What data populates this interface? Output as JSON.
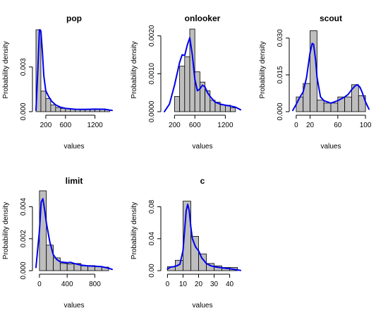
{
  "chart_data": [
    {
      "type": "bar",
      "title": "pop",
      "xlabel": "values",
      "ylabel": "Probability density",
      "xlim": [
        0,
        1550
      ],
      "ylim": [
        0,
        0.0056
      ],
      "xticks": [
        200,
        600,
        1200
      ],
      "yticks": [
        0.0,
        0.003
      ],
      "ytick_labels": [
        "0.000",
        "0.003"
      ],
      "bin_edges": [
        0,
        100,
        200,
        300,
        400,
        500,
        600,
        700,
        800,
        900,
        1000,
        1100,
        1200,
        1300,
        1400,
        1500
      ],
      "densities": [
        0.0055,
        0.00138,
        0.00088,
        0.00045,
        0.00028,
        0.00022,
        0.0002,
        0.00017,
        0.00015,
        0.00015,
        0.00015,
        0.00017,
        0.00018,
        0.00018,
        0.00012
      ],
      "density_curve": {
        "x": [
          0,
          40,
          70,
          100,
          130,
          160,
          200,
          260,
          320,
          400,
          500,
          600,
          800,
          1000,
          1200,
          1400,
          1550
        ],
        "y": [
          0.0001,
          0.003,
          0.0055,
          0.0054,
          0.004,
          0.0024,
          0.0014,
          0.001,
          0.0007,
          0.00045,
          0.0003,
          0.00022,
          0.00016,
          0.00015,
          0.00017,
          0.00016,
          8e-05
        ]
      }
    },
    {
      "type": "bar",
      "title": "onlooker",
      "xlabel": "values",
      "ylabel": "Probability density",
      "xlim": [
        0,
        1500
      ],
      "ylim": [
        0,
        0.0022
      ],
      "xticks": [
        200,
        600,
        1200
      ],
      "yticks": [
        0.0,
        0.001,
        0.002
      ],
      "ytick_labels": [
        "0.0000",
        "0.0010",
        "0.0020"
      ],
      "bin_edges": [
        200,
        300,
        400,
        500,
        600,
        700,
        800,
        900,
        1000,
        1100,
        1200,
        1300,
        1400
      ],
      "densities": [
        0.0004,
        0.0012,
        0.00145,
        0.00218,
        0.00105,
        0.00078,
        0.00055,
        0.0003,
        0.00025,
        0.00018,
        0.00017,
        0.0001
      ],
      "density_curve": {
        "x": [
          0,
          100,
          200,
          300,
          350,
          400,
          450,
          500,
          550,
          600,
          650,
          700,
          750,
          800,
          850,
          900,
          1000,
          1100,
          1200,
          1300,
          1400,
          1500
        ],
        "y": [
          0.0,
          0.0002,
          0.0007,
          0.0013,
          0.0015,
          0.00148,
          0.00175,
          0.00195,
          0.0015,
          0.00085,
          0.00055,
          0.0006,
          0.0007,
          0.00065,
          0.0005,
          0.0004,
          0.00025,
          0.0002,
          0.00017,
          0.00015,
          0.00012,
          5e-05
        ]
      }
    },
    {
      "type": "bar",
      "title": "scout",
      "xlabel": "values",
      "ylabel": "Probability density",
      "xlim": [
        -5,
        105
      ],
      "ylim": [
        0,
        0.034
      ],
      "xticks": [
        0,
        20,
        60,
        100
      ],
      "yticks": [
        0.0,
        0.015,
        0.03
      ],
      "ytick_labels": [
        "0.000",
        "0.015",
        "0.030"
      ],
      "bin_edges": [
        0,
        10,
        20,
        30,
        40,
        50,
        60,
        70,
        80,
        90,
        100
      ],
      "densities": [
        0.006,
        0.0115,
        0.033,
        0.0047,
        0.0035,
        0.0035,
        0.006,
        0.006,
        0.011,
        0.0065
      ],
      "density_curve": {
        "x": [
          -5,
          0,
          5,
          10,
          15,
          20,
          23,
          25,
          28,
          30,
          35,
          40,
          50,
          60,
          70,
          75,
          80,
          85,
          88,
          92,
          95,
          100,
          105
        ],
        "y": [
          0.0005,
          0.003,
          0.0058,
          0.008,
          0.014,
          0.024,
          0.0278,
          0.0275,
          0.021,
          0.014,
          0.006,
          0.0045,
          0.0035,
          0.0045,
          0.006,
          0.007,
          0.009,
          0.0105,
          0.011,
          0.01,
          0.008,
          0.004,
          0.001
        ]
      }
    },
    {
      "type": "bar",
      "title": "limit",
      "xlabel": "values",
      "ylabel": "Probability density",
      "xlim": [
        -50,
        1050
      ],
      "ylim": [
        0,
        0.005
      ],
      "xticks": [
        0,
        400,
        800
      ],
      "yticks": [
        0.0,
        0.002,
        0.004
      ],
      "ytick_labels": [
        "0.000",
        "0.002",
        "0.004"
      ],
      "bin_edges": [
        0,
        100,
        200,
        300,
        400,
        500,
        600,
        700,
        800,
        900,
        1000
      ],
      "densities": [
        0.005,
        0.0016,
        0.0008,
        0.00045,
        0.00042,
        0.00045,
        0.0003,
        0.00032,
        0.00025,
        0.00022
      ],
      "density_curve": {
        "x": [
          -50,
          0,
          25,
          50,
          75,
          100,
          150,
          200,
          250,
          300,
          400,
          450,
          500,
          600,
          700,
          800,
          900,
          1000,
          1050
        ],
        "y": [
          0.0002,
          0.0025,
          0.0043,
          0.0045,
          0.0038,
          0.003,
          0.0018,
          0.001,
          0.0007,
          0.00055,
          0.0005,
          0.00052,
          0.00045,
          0.00035,
          0.0003,
          0.00028,
          0.00025,
          0.00015,
          8e-05
        ]
      }
    },
    {
      "type": "bar",
      "title": "c",
      "xlabel": "values",
      "ylabel": "Probability density",
      "xlim": [
        -2,
        47
      ],
      "ylim": [
        0,
        0.1
      ],
      "xticks": [
        0,
        10,
        20,
        30,
        40
      ],
      "yticks": [
        0.0,
        0.04,
        0.08
      ],
      "ytick_labels": [
        "0.00",
        "0.04",
        "0.08"
      ],
      "bin_edges": [
        0,
        5,
        10,
        15,
        20,
        25,
        30,
        35,
        40,
        45
      ],
      "densities": [
        0.005,
        0.013,
        0.087,
        0.043,
        0.021,
        0.009,
        0.006,
        0.004,
        0.004
      ],
      "density_curve": {
        "x": [
          0,
          2,
          4,
          6,
          8,
          10,
          11,
          12,
          13,
          14,
          15,
          16,
          18,
          20,
          22,
          25,
          28,
          30,
          35,
          40,
          45,
          47
        ],
        "y": [
          0.002,
          0.0045,
          0.005,
          0.006,
          0.008,
          0.025,
          0.05,
          0.075,
          0.083,
          0.075,
          0.055,
          0.04,
          0.03,
          0.025,
          0.016,
          0.009,
          0.006,
          0.005,
          0.0035,
          0.0025,
          0.001,
          0.0003
        ]
      }
    }
  ],
  "colors": {
    "bar_fill": "#bebebe",
    "bar_stroke": "#000000",
    "curve": "#0000ee",
    "axis": "#000000"
  }
}
